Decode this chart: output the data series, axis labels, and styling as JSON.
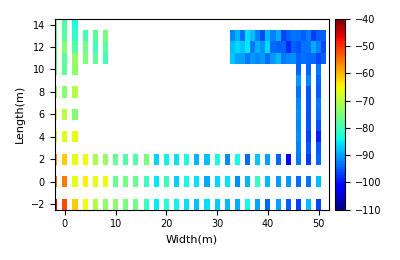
{
  "xlabel": "Width(m)",
  "ylabel": "Length(m)",
  "xlim": [
    -2,
    52
  ],
  "ylim": [
    -2.5,
    14.5
  ],
  "xticks": [
    0,
    10,
    20,
    30,
    40,
    50
  ],
  "yticks": [
    -2,
    0,
    2,
    4,
    6,
    8,
    10,
    12,
    14
  ],
  "cbar_min": -110,
  "cbar_max": -40,
  "cbar_ticks": [
    -110,
    -100,
    -90,
    -80,
    -70,
    -60,
    -50,
    -40
  ],
  "colormap": "jet",
  "figsize": [
    4.0,
    2.6
  ],
  "dpi": 100,
  "left_wall_x_max": 2.5,
  "left_wall_y_min": -1.5,
  "left_wall_y_max": 13.5,
  "bottom_strip_y_max": 1.5,
  "bottom_strip_x_min": -1.5,
  "bottom_strip_x_max": 50.5,
  "right_wall_x_min": 45.5,
  "right_wall_y_min": 2.0,
  "top_left_x_max": 7.5,
  "top_left_y_min": 11.0,
  "top_right_x_min": 33.0,
  "top_right_y_min": 11.0
}
